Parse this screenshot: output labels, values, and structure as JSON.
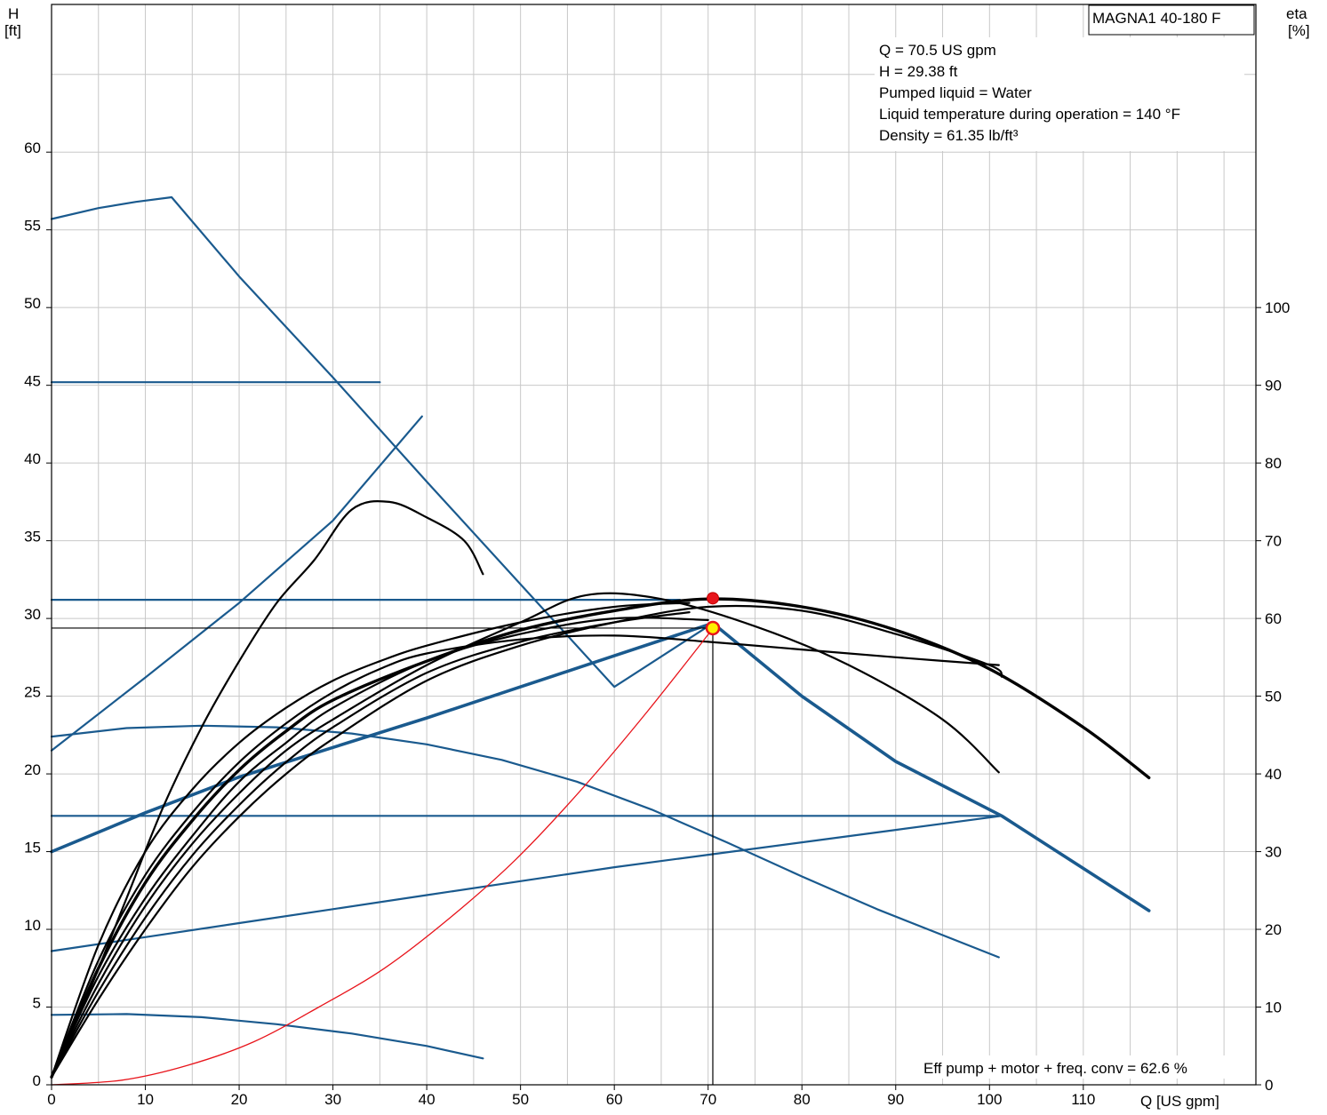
{
  "chart_data": {
    "type": "line",
    "title_box": "MAGNA1 40-180 F",
    "ylabel_left": "H",
    "ylabel_left_unit": "[ft]",
    "ylabel_right": "eta",
    "ylabel_right_unit": "[%]",
    "xlabel": "Q [US gpm]",
    "xlim": [
      0,
      128.4
    ],
    "ylim_left": [
      0,
      69.5
    ],
    "ylim_right": [
      0,
      139
    ],
    "x_ticks": [
      0,
      10,
      20,
      30,
      40,
      50,
      60,
      70,
      80,
      90,
      100,
      110
    ],
    "y_ticks_left": [
      0,
      5,
      10,
      15,
      20,
      25,
      30,
      35,
      40,
      45,
      50,
      55,
      60
    ],
    "y_ticks_right": [
      0,
      10,
      20,
      30,
      40,
      50,
      60,
      70,
      80,
      90,
      100
    ],
    "grid": true,
    "info_lines": [
      "Q = 70.5 US gpm",
      "H = 29.38 ft",
      "Pumped liquid = Water",
      "Liquid temperature during operation = 140 °F",
      "Density = 61.35 lb/ft³"
    ],
    "efficiency_note": "Eff pump + motor + freq. conv = 62.6 %",
    "colors": {
      "blue": "#1a5a8e",
      "black": "#000000",
      "red": "#e8141b",
      "grid": "#c8c8c8",
      "marker_yellow": "#ffee00"
    },
    "duty_point": {
      "q": 70.5,
      "h": 29.38
    },
    "max_head_point": {
      "q": 70.5,
      "h": 31.3
    },
    "head_curves": [
      {
        "style": "blue-thin",
        "points": [
          [
            0,
            55.7
          ],
          [
            5,
            56.4
          ],
          [
            9,
            56.8
          ],
          [
            12.8,
            57.1
          ],
          [
            20,
            52
          ],
          [
            30,
            45.5
          ],
          [
            40,
            38.8
          ],
          [
            50,
            32.2
          ],
          [
            60,
            25.6
          ],
          [
            70,
            29.5
          ]
        ]
      },
      {
        "style": "blue-thin",
        "points": [
          [
            0,
            45.2
          ],
          [
            35,
            45.2
          ]
        ]
      },
      {
        "style": "blue-thin",
        "points": [
          [
            0,
            21.5
          ],
          [
            10,
            26.2
          ],
          [
            20,
            31
          ],
          [
            30,
            36.3
          ],
          [
            39.5,
            43
          ]
        ]
      },
      {
        "style": "blue-thin",
        "points": [
          [
            0,
            31.2
          ],
          [
            67,
            31.2
          ]
        ]
      },
      {
        "style": "blue-thick",
        "points": [
          [
            0,
            15
          ],
          [
            10,
            17.5
          ],
          [
            20,
            19.8
          ],
          [
            30,
            21.7
          ],
          [
            40,
            23.6
          ],
          [
            50,
            25.6
          ],
          [
            60,
            27.6
          ],
          [
            70.5,
            29.7
          ]
        ]
      },
      {
        "style": "blue-thick",
        "points": [
          [
            70.5,
            29.7
          ],
          [
            80,
            25
          ],
          [
            90,
            20.8
          ],
          [
            101.3,
            17.3
          ],
          [
            117,
            11.2
          ]
        ]
      },
      {
        "style": "blue-thin",
        "points": [
          [
            0,
            22.4
          ],
          [
            8,
            22.95
          ],
          [
            16,
            23.1
          ],
          [
            24,
            23.0
          ],
          [
            32,
            22.6
          ],
          [
            40,
            21.9
          ],
          [
            48,
            20.9
          ],
          [
            56,
            19.5
          ],
          [
            64,
            17.7
          ],
          [
            72,
            15.6
          ],
          [
            80,
            13.4
          ],
          [
            88,
            11.3
          ],
          [
            101,
            8.2
          ]
        ]
      },
      {
        "style": "blue-thin",
        "points": [
          [
            0,
            17.3
          ],
          [
            101.3,
            17.3
          ]
        ]
      },
      {
        "style": "blue-thin",
        "points": [
          [
            0,
            8.6
          ],
          [
            10,
            9.5
          ],
          [
            20,
            10.4
          ],
          [
            30,
            11.3
          ],
          [
            40,
            12.2
          ],
          [
            50,
            13.1
          ],
          [
            60,
            14
          ],
          [
            70,
            14.8
          ],
          [
            80,
            15.6
          ],
          [
            90,
            16.4
          ],
          [
            101.3,
            17.3
          ]
        ]
      },
      {
        "style": "blue-thin",
        "points": [
          [
            0,
            4.5
          ],
          [
            8,
            4.55
          ],
          [
            16,
            4.35
          ],
          [
            24,
            3.9
          ],
          [
            32,
            3.3
          ],
          [
            40,
            2.5
          ],
          [
            46,
            1.7
          ]
        ]
      }
    ],
    "efficiency_curves": [
      {
        "style": "black-thin",
        "points": [
          [
            0,
            1
          ],
          [
            4,
            12
          ],
          [
            8,
            24
          ],
          [
            12,
            36
          ],
          [
            16,
            46
          ],
          [
            20,
            54.5
          ],
          [
            24,
            62
          ],
          [
            28,
            67.5
          ],
          [
            32,
            74
          ],
          [
            36,
            75
          ],
          [
            40,
            73
          ],
          [
            44,
            70
          ],
          [
            46,
            65.7
          ]
        ]
      },
      {
        "style": "black-thin",
        "points": [
          [
            0,
            1
          ],
          [
            5,
            16
          ],
          [
            10,
            27
          ],
          [
            15,
            35
          ],
          [
            20,
            41.5
          ],
          [
            25,
            46.5
          ],
          [
            30,
            50.5
          ],
          [
            35,
            53.5
          ],
          [
            40,
            55.5
          ],
          [
            50,
            57.3
          ],
          [
            60,
            57.8
          ],
          [
            70,
            57
          ],
          [
            80,
            56
          ],
          [
            90,
            55
          ],
          [
            101,
            54
          ]
        ]
      },
      {
        "style": "black-thin",
        "points": [
          [
            0,
            1
          ],
          [
            5,
            18
          ],
          [
            10,
            30
          ],
          [
            15,
            38
          ],
          [
            20,
            44
          ],
          [
            25,
            48.5
          ],
          [
            30,
            52
          ],
          [
            35,
            54.5
          ],
          [
            40,
            56.5
          ],
          [
            50,
            59.5
          ],
          [
            60,
            61.5
          ],
          [
            68,
            62
          ]
        ]
      },
      {
        "style": "black-thick",
        "points": [
          [
            0,
            1
          ],
          [
            5,
            15
          ],
          [
            10,
            26
          ],
          [
            15,
            34
          ],
          [
            20,
            40.5
          ],
          [
            25,
            45.5
          ],
          [
            30,
            49.5
          ],
          [
            40,
            54.5
          ],
          [
            50,
            58.5
          ],
          [
            60,
            61
          ],
          [
            70,
            62.5
          ],
          [
            80,
            61.5
          ],
          [
            90,
            58.5
          ],
          [
            100,
            53.5
          ],
          [
            110,
            46
          ],
          [
            117,
            39.5
          ]
        ]
      },
      {
        "style": "black-thin",
        "points": [
          [
            0,
            1
          ],
          [
            5,
            13
          ],
          [
            10,
            23
          ],
          [
            15,
            31
          ],
          [
            20,
            37.5
          ],
          [
            25,
            43
          ],
          [
            30,
            47
          ],
          [
            40,
            54
          ],
          [
            50,
            59.5
          ],
          [
            57,
            63
          ],
          [
            65,
            62.5
          ],
          [
            75,
            59
          ],
          [
            85,
            54
          ],
          [
            95,
            47
          ],
          [
            101,
            40.2
          ]
        ]
      },
      {
        "style": "black-thin",
        "points": [
          [
            0,
            1
          ],
          [
            5,
            14
          ],
          [
            10,
            24
          ],
          [
            15,
            32
          ],
          [
            20,
            39
          ],
          [
            25,
            44
          ],
          [
            30,
            48.5
          ],
          [
            40,
            54.5
          ],
          [
            50,
            58
          ],
          [
            60,
            60
          ],
          [
            70,
            59.8
          ]
        ]
      },
      {
        "style": "black-thin",
        "points": [
          [
            0,
            1
          ],
          [
            5,
            12
          ],
          [
            10,
            21.5
          ],
          [
            15,
            29.5
          ],
          [
            20,
            36
          ],
          [
            25,
            41.5
          ],
          [
            30,
            46
          ],
          [
            40,
            53
          ],
          [
            50,
            57
          ],
          [
            60,
            59.5
          ],
          [
            68,
            60.8
          ]
        ]
      },
      {
        "style": "black-thin",
        "points": [
          [
            0,
            1
          ],
          [
            5,
            11
          ],
          [
            10,
            20
          ],
          [
            15,
            28
          ],
          [
            20,
            34.5
          ],
          [
            25,
            40
          ],
          [
            30,
            44.5
          ],
          [
            40,
            52
          ],
          [
            50,
            56.5
          ],
          [
            60,
            59.5
          ],
          [
            70,
            61.5
          ],
          [
            80,
            61
          ],
          [
            90,
            58
          ],
          [
            100,
            54
          ],
          [
            101.3,
            52.5
          ]
        ]
      }
    ],
    "power_curve_red": {
      "style": "red-thin",
      "points": [
        [
          0,
          0
        ],
        [
          7.5,
          0.6
        ],
        [
          14.5,
          2.5
        ],
        [
          21.5,
          5.5
        ],
        [
          28.5,
          10
        ],
        [
          35.5,
          15
        ],
        [
          42.5,
          21.5
        ],
        [
          49.5,
          29
        ],
        [
          56.5,
          38
        ],
        [
          63.5,
          48
        ],
        [
          70.5,
          58.7
        ]
      ]
    }
  }
}
